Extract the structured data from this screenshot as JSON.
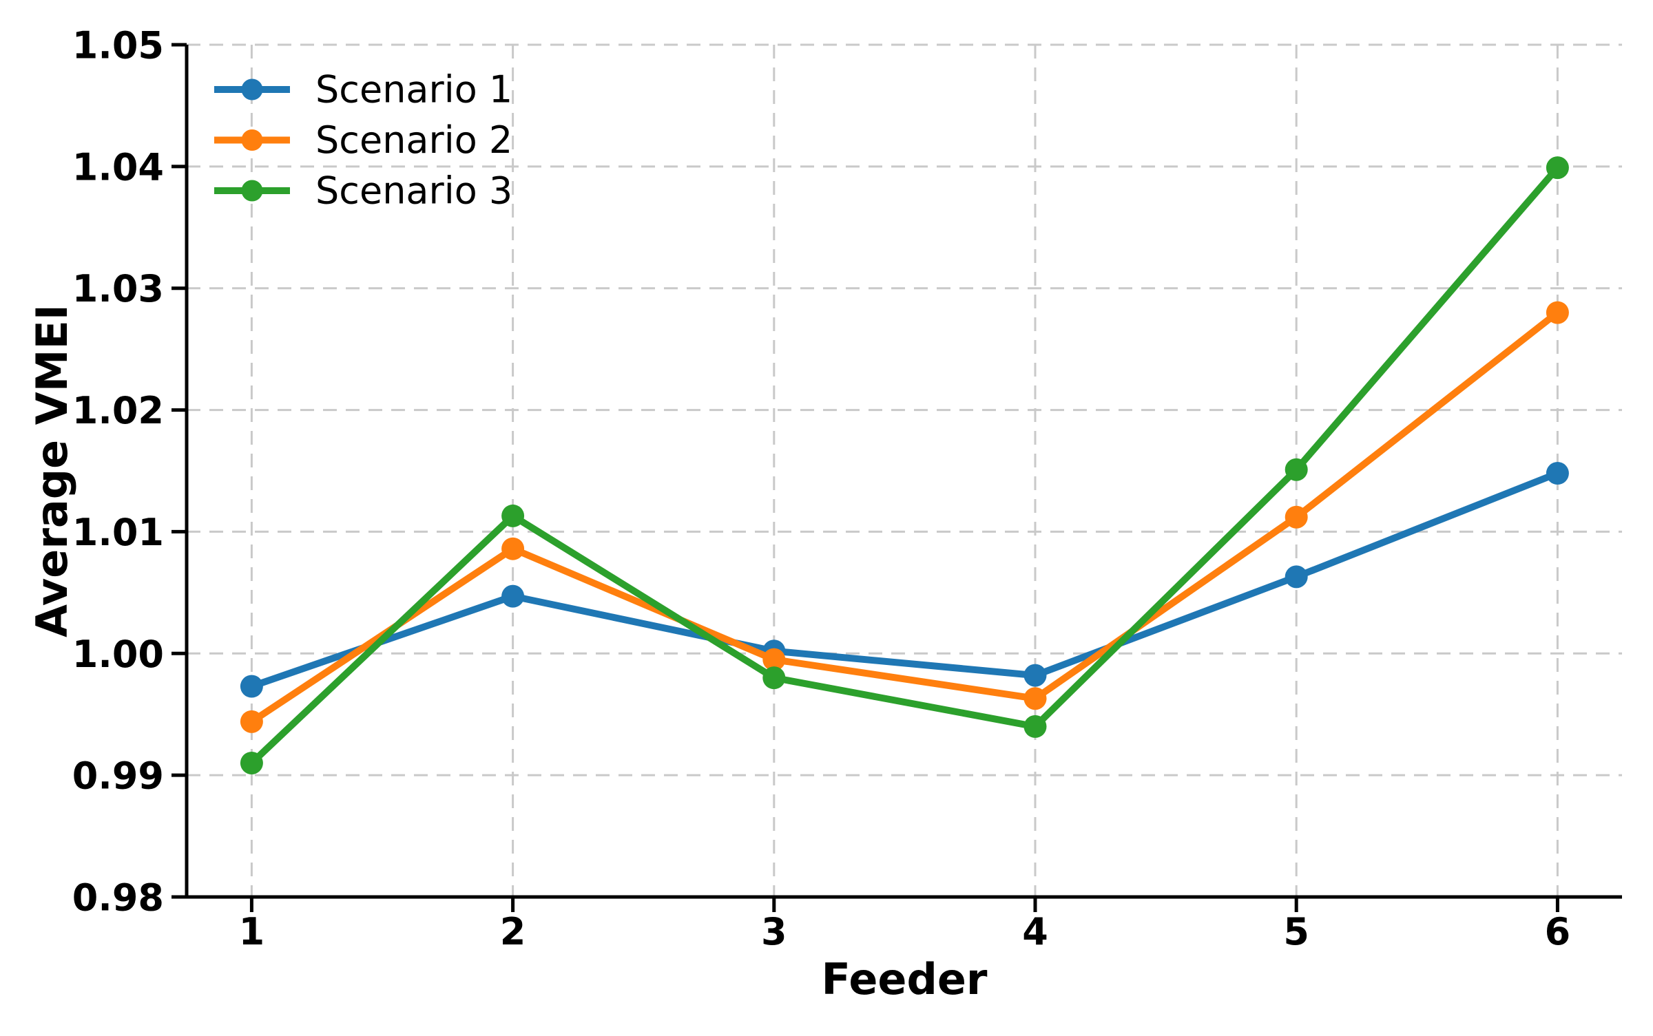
{
  "figure": {
    "background": "#ffffff"
  },
  "styles": {
    "grid_color": "#c9c9c9",
    "axis_color": "#000000",
    "text_color": "#000000"
  },
  "chart_data": {
    "type": "line",
    "title": "",
    "xlabel": "Feeder",
    "ylabel": "Average VMEI",
    "x": [
      1,
      2,
      3,
      4,
      5,
      6
    ],
    "x_tick_labels": [
      "1",
      "2",
      "3",
      "4",
      "5",
      "6"
    ],
    "yticks": [
      0.98,
      0.99,
      1.0,
      1.01,
      1.02,
      1.03,
      1.04,
      1.05
    ],
    "y_tick_labels": [
      "0.98",
      "0.99",
      "1.00",
      "1.01",
      "1.02",
      "1.03",
      "1.04",
      "1.05"
    ],
    "ylim": [
      0.98,
      1.05
    ],
    "grid": true,
    "grid_style": "dashed",
    "legend_position": "upper left",
    "legend_frame": false,
    "series": [
      {
        "name": "Scenario 1",
        "color": "#1f77b4",
        "marker": "circle",
        "values": [
          0.9973,
          1.0047,
          1.0002,
          0.9982,
          1.0063,
          1.0148
        ]
      },
      {
        "name": "Scenario 2",
        "color": "#ff7f0e",
        "marker": "circle",
        "values": [
          0.9944,
          1.0086,
          0.9995,
          0.9963,
          1.0112,
          1.028
        ]
      },
      {
        "name": "Scenario 3",
        "color": "#2ca02c",
        "marker": "circle",
        "values": [
          0.991,
          1.0113,
          0.998,
          0.994,
          1.0151,
          1.0399
        ]
      }
    ]
  }
}
